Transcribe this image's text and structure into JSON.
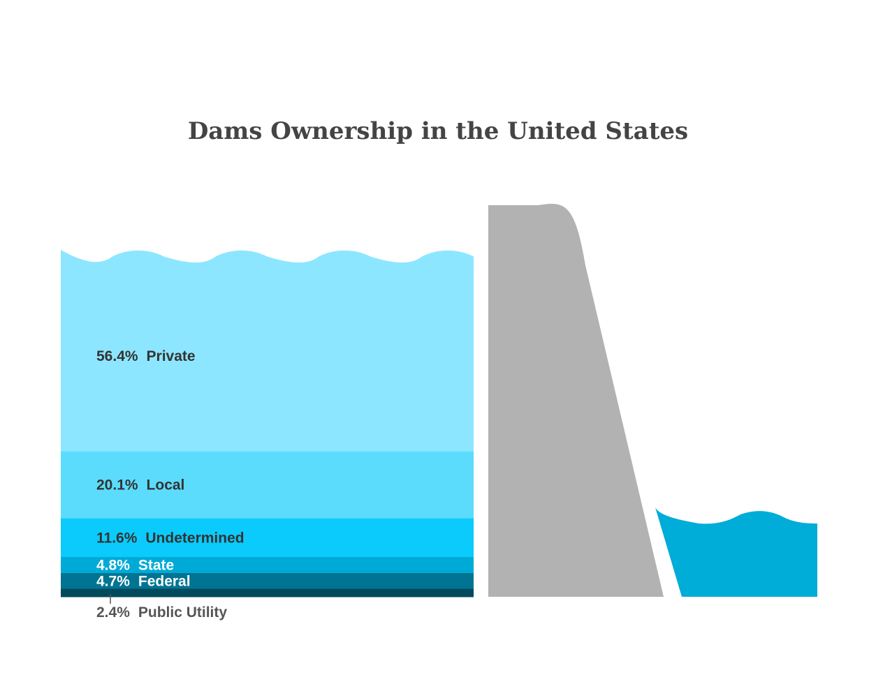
{
  "chart_data": {
    "type": "stacked-bar",
    "title": "Dams Ownership in the United States",
    "unit": "%",
    "segments": [
      {
        "value": 56.4,
        "name": "Private",
        "value_label": "56.4%",
        "color": "#8de6ff",
        "text_color": "#333333"
      },
      {
        "value": 20.1,
        "name": "Local",
        "value_label": "20.1%",
        "color": "#5bdcfd",
        "text_color": "#333333"
      },
      {
        "value": 11.6,
        "name": "Undetermined",
        "value_label": "11.6%",
        "color": "#0bcbfc",
        "text_color": "#333333"
      },
      {
        "value": 4.8,
        "name": "State",
        "value_label": "4.8%",
        "color": "#00aad6",
        "text_color": "#ffffff"
      },
      {
        "value": 4.7,
        "name": "Federal",
        "value_label": "4.7%",
        "color": "#007492",
        "text_color": "#ffffff"
      },
      {
        "value": 2.4,
        "name": "Public Utility",
        "value_label": "2.4%",
        "color": "#004a5c",
        "text_color": "#555555",
        "label_outside": true
      }
    ],
    "decor": {
      "dam_color": "#b2b2b2",
      "downstream_water_color": "#00acd8"
    }
  }
}
